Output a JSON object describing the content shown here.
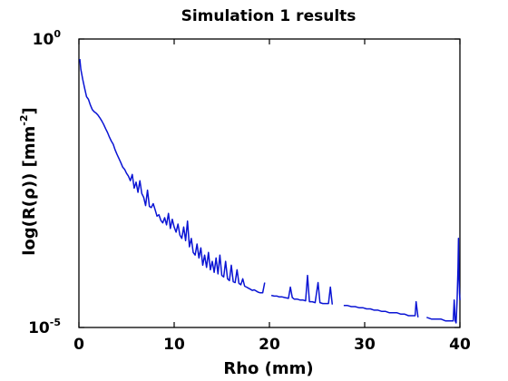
{
  "colors": {
    "series": "#0a14d4",
    "axis": "#000000"
  },
  "chart_data": {
    "type": "line",
    "title": "Simulation 1 results",
    "xlabel": "Rho (mm)",
    "ylabel_parts": {
      "pre": "log(R(ρ)) [mm",
      "sup": "-2",
      "post": "]"
    },
    "xlim": [
      0,
      40
    ],
    "ylim": [
      1e-05,
      1
    ],
    "yscale": "log",
    "grid": false,
    "x_ticks": [
      {
        "value": 0,
        "label": "0"
      },
      {
        "value": 10,
        "label": "10"
      },
      {
        "value": 20,
        "label": "20"
      },
      {
        "value": 30,
        "label": "30"
      },
      {
        "value": 40,
        "label": "40"
      }
    ],
    "y_ticks": [
      {
        "value": 1,
        "base": "10",
        "exp": "0"
      },
      {
        "value": 1e-05,
        "base": "10",
        "exp": "-5"
      }
    ],
    "segments": [
      [
        [
          0.1,
          0.45
        ],
        [
          0.2,
          0.3
        ],
        [
          0.4,
          0.2
        ],
        [
          0.6,
          0.14
        ],
        [
          0.8,
          0.1
        ],
        [
          1.0,
          0.09
        ],
        [
          1.2,
          0.072
        ],
        [
          1.4,
          0.06
        ],
        [
          1.6,
          0.055
        ],
        [
          1.8,
          0.052
        ],
        [
          2.0,
          0.048
        ],
        [
          2.2,
          0.043
        ],
        [
          2.4,
          0.038
        ],
        [
          2.6,
          0.033
        ],
        [
          2.8,
          0.028
        ],
        [
          3.0,
          0.024
        ],
        [
          3.2,
          0.02
        ],
        [
          3.4,
          0.017
        ],
        [
          3.6,
          0.015
        ],
        [
          3.8,
          0.012
        ],
        [
          4.0,
          0.01
        ],
        [
          4.2,
          0.0085
        ],
        [
          4.4,
          0.0072
        ],
        [
          4.6,
          0.006
        ],
        [
          4.8,
          0.0055
        ],
        [
          5.0,
          0.0047
        ],
        [
          5.2,
          0.0042
        ],
        [
          5.4,
          0.0035
        ],
        [
          5.6,
          0.0045
        ],
        [
          5.8,
          0.0026
        ],
        [
          6.0,
          0.0033
        ],
        [
          6.2,
          0.0022
        ],
        [
          6.4,
          0.0035
        ],
        [
          6.6,
          0.0021
        ],
        [
          6.8,
          0.0018
        ],
        [
          7.0,
          0.0013
        ],
        [
          7.2,
          0.0024
        ],
        [
          7.4,
          0.00125
        ],
        [
          7.6,
          0.0012
        ],
        [
          7.8,
          0.0014
        ],
        [
          8.0,
          0.0011
        ],
        [
          8.2,
          0.00085
        ],
        [
          8.4,
          0.0009
        ],
        [
          8.6,
          0.00072
        ],
        [
          8.8,
          0.00065
        ],
        [
          9.0,
          0.0008
        ],
        [
          9.2,
          0.0006
        ],
        [
          9.4,
          0.00095
        ],
        [
          9.6,
          0.00052
        ],
        [
          9.8,
          0.00075
        ],
        [
          10.0,
          0.00055
        ],
        [
          10.2,
          0.00045
        ],
        [
          10.4,
          0.00062
        ],
        [
          10.6,
          0.0004
        ],
        [
          10.8,
          0.00035
        ],
        [
          11.0,
          0.00055
        ],
        [
          11.2,
          0.00032
        ],
        [
          11.4,
          0.0007
        ],
        [
          11.6,
          0.00025
        ],
        [
          11.8,
          0.00035
        ],
        [
          12.0,
          0.0002
        ],
        [
          12.2,
          0.00018
        ],
        [
          12.4,
          0.00028
        ],
        [
          12.6,
          0.00016
        ],
        [
          12.8,
          0.00024
        ],
        [
          13.0,
          0.00012
        ],
        [
          13.2,
          0.00018
        ],
        [
          13.4,
          0.00011
        ],
        [
          13.6,
          0.0002
        ],
        [
          13.8,
          0.0001
        ],
        [
          14.0,
          0.00014
        ],
        [
          14.2,
          9e-05
        ],
        [
          14.4,
          0.00016
        ],
        [
          14.6,
          8.5e-05
        ],
        [
          14.8,
          0.00018
        ],
        [
          15.0,
          8e-05
        ],
        [
          15.2,
          7.5e-05
        ],
        [
          15.4,
          0.00014
        ],
        [
          15.6,
          7e-05
        ],
        [
          15.8,
          6.5e-05
        ],
        [
          16.0,
          0.00012
        ],
        [
          16.2,
          6.2e-05
        ],
        [
          16.4,
          6e-05
        ],
        [
          16.6,
          0.0001
        ],
        [
          16.8,
          5.8e-05
        ],
        [
          17.0,
          5.5e-05
        ],
        [
          17.2,
          7e-05
        ],
        [
          17.4,
          5.2e-05
        ],
        [
          17.6,
          5e-05
        ],
        [
          17.8,
          4.8e-05
        ],
        [
          18.0,
          4.6e-05
        ],
        [
          18.2,
          4.4e-05
        ],
        [
          18.4,
          4.5e-05
        ],
        [
          18.6,
          4.3e-05
        ],
        [
          18.8,
          4.1e-05
        ],
        [
          19.0,
          4e-05
        ],
        [
          19.3,
          4e-05
        ],
        [
          19.5,
          6e-05
        ]
      ],
      [
        [
          20.2,
          3.6e-05
        ],
        [
          20.5,
          3.5e-05
        ],
        [
          20.8,
          3.5e-05
        ],
        [
          21.0,
          3.4e-05
        ],
        [
          21.3,
          3.4e-05
        ],
        [
          21.6,
          3.3e-05
        ],
        [
          22.0,
          3.2e-05
        ],
        [
          22.2,
          5e-05
        ],
        [
          22.4,
          3.3e-05
        ],
        [
          22.6,
          3.1e-05
        ],
        [
          22.9,
          3.1e-05
        ],
        [
          23.2,
          3e-05
        ],
        [
          23.5,
          3e-05
        ],
        [
          23.8,
          2.9e-05
        ],
        [
          24.0,
          8e-05
        ],
        [
          24.2,
          2.8e-05
        ],
        [
          24.5,
          2.8e-05
        ],
        [
          24.8,
          2.7e-05
        ],
        [
          25.1,
          6e-05
        ],
        [
          25.3,
          2.7e-05
        ],
        [
          25.6,
          2.6e-05
        ],
        [
          25.9,
          2.6e-05
        ],
        [
          26.2,
          2.6e-05
        ],
        [
          26.4,
          5e-05
        ],
        [
          26.6,
          2.5e-05
        ]
      ],
      [
        [
          27.8,
          2.4e-05
        ],
        [
          28.2,
          2.4e-05
        ],
        [
          28.6,
          2.3e-05
        ],
        [
          29.0,
          2.3e-05
        ],
        [
          29.4,
          2.2e-05
        ],
        [
          29.8,
          2.2e-05
        ],
        [
          30.2,
          2.1e-05
        ],
        [
          30.6,
          2.1e-05
        ],
        [
          31.0,
          2e-05
        ],
        [
          31.4,
          2e-05
        ],
        [
          31.8,
          1.9e-05
        ],
        [
          32.2,
          1.9e-05
        ],
        [
          32.6,
          1.8e-05
        ],
        [
          33.0,
          1.8e-05
        ],
        [
          33.4,
          1.8e-05
        ],
        [
          33.8,
          1.7e-05
        ],
        [
          34.2,
          1.7e-05
        ],
        [
          34.6,
          1.6e-05
        ],
        [
          35.0,
          1.6e-05
        ],
        [
          35.3,
          1.6e-05
        ],
        [
          35.4,
          2.8e-05
        ],
        [
          35.6,
          1.5e-05
        ]
      ],
      [
        [
          36.5,
          1.5e-05
        ],
        [
          37.0,
          1.4e-05
        ],
        [
          37.5,
          1.4e-05
        ],
        [
          38.0,
          1.4e-05
        ],
        [
          38.5,
          1.3e-05
        ],
        [
          39.0,
          1.3e-05
        ],
        [
          39.3,
          1.3e-05
        ],
        [
          39.4,
          3e-05
        ],
        [
          39.5,
          1.3e-05
        ],
        [
          39.6,
          1.2e-05
        ],
        [
          39.7,
          3e-05
        ],
        [
          39.8,
          0.00011
        ],
        [
          39.85,
          0.00035
        ],
        [
          39.9,
          8e-05
        ],
        [
          39.95,
          4e-05
        ],
        [
          40.0,
          3e-05
        ]
      ]
    ]
  }
}
